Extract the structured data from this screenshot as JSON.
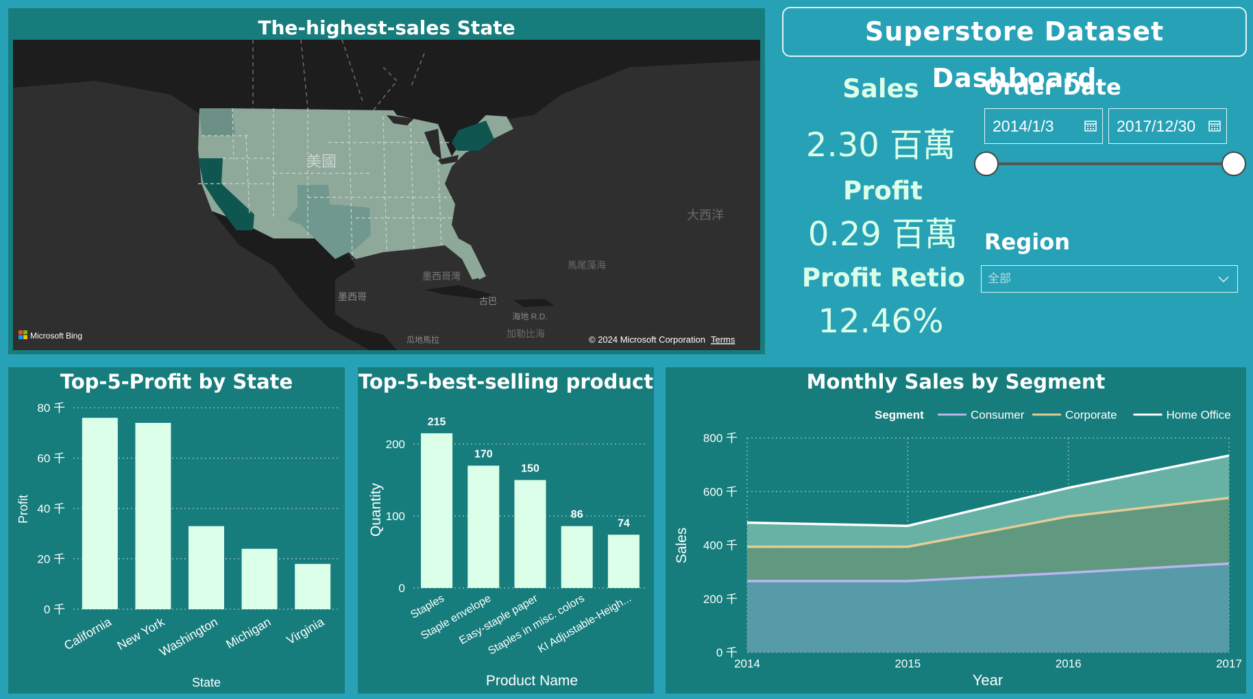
{
  "dashboard_title": "Superstore Dataset Dashboard",
  "map": {
    "title": "The-highest-sales State",
    "country_label": "美國",
    "ocean_labels": [
      "大西洋",
      "墨西哥灣",
      "墨西哥",
      "馬尾藻海",
      "古巴",
      "海地 R.D.",
      "加勒比海",
      "瓜地馬拉"
    ],
    "bing_label": "Microsoft Bing",
    "copyright": "© 2024 Microsoft Corporation",
    "terms_label": "Terms"
  },
  "kpis": {
    "sales_label": "Sales",
    "sales_value": "2.30 百萬",
    "profit_label": "Profit",
    "profit_value": "0.29 百萬",
    "ratio_label": "Profit Retio",
    "ratio_value": "12.46%"
  },
  "filters": {
    "order_date_label": "Order Date",
    "start_date": "2014/1/3",
    "end_date": "2017/12/30",
    "slider_start": 0.0,
    "slider_end": 1.0,
    "region_label": "Region",
    "region_value": "全部",
    "icons": [
      "calendar-icon",
      "chevron-down-icon"
    ]
  },
  "chart_data": [
    {
      "type": "bar",
      "title": "Top-5-Profit by State",
      "xlabel": "State",
      "ylabel": "Profit",
      "categories": [
        "California",
        "New York",
        "Washington",
        "Michigan",
        "Virginia"
      ],
      "values": [
        76,
        74,
        33,
        24,
        18
      ],
      "ylim": [
        0,
        80
      ],
      "yticks": [
        0,
        20,
        40,
        60,
        80
      ],
      "ytick_labels": [
        "0 千",
        "20 千",
        "40 千",
        "60 千",
        "80 千"
      ],
      "grid": true,
      "bar_color": "#dcffe9"
    },
    {
      "type": "bar",
      "title": "Top-5-best-selling product",
      "xlabel": "Product Name",
      "ylabel": "Quantity",
      "categories": [
        "Staples",
        "Staple envelope",
        "Easy-staple paper",
        "Staples in misc. colors",
        "KI Adjustable-Heigh..."
      ],
      "values": [
        215,
        170,
        150,
        86,
        74
      ],
      "data_labels": [
        "215",
        "170",
        "150",
        "86",
        "74"
      ],
      "ylim": [
        0,
        200
      ],
      "yticks": [
        0,
        100,
        200
      ],
      "ytick_labels": [
        "0",
        "100",
        "200"
      ],
      "grid": true,
      "bar_color": "#dcffe9"
    },
    {
      "type": "area",
      "stacked": true,
      "title": "Monthly Sales by Segment",
      "xlabel": "Year",
      "ylabel": "Sales",
      "legend_title": "Segment",
      "legend_position": "top-right",
      "x": [
        2014,
        2015,
        2016,
        2017
      ],
      "series": [
        {
          "name": "Consumer",
          "values": [
            266,
            266,
            297,
            331
          ],
          "color": "#b8b7f0",
          "fill": "#5b9cab"
        },
        {
          "name": "Corporate",
          "values": [
            128,
            128,
            210,
            245
          ],
          "color": "#e6cc96",
          "fill": "#649b80"
        },
        {
          "name": "Home Office",
          "values": [
            90,
            78,
            107,
            158
          ],
          "color": "#ffffff",
          "fill": "#6bb5a8"
        }
      ],
      "ylim": [
        0,
        800
      ],
      "yticks": [
        0,
        200,
        400,
        600,
        800
      ],
      "ytick_labels": [
        "0 千",
        "200 千",
        "400 千",
        "600 千",
        "800 千"
      ],
      "xtick_labels": [
        "2014",
        "2015",
        "2016",
        "2017"
      ],
      "grid": true
    }
  ]
}
